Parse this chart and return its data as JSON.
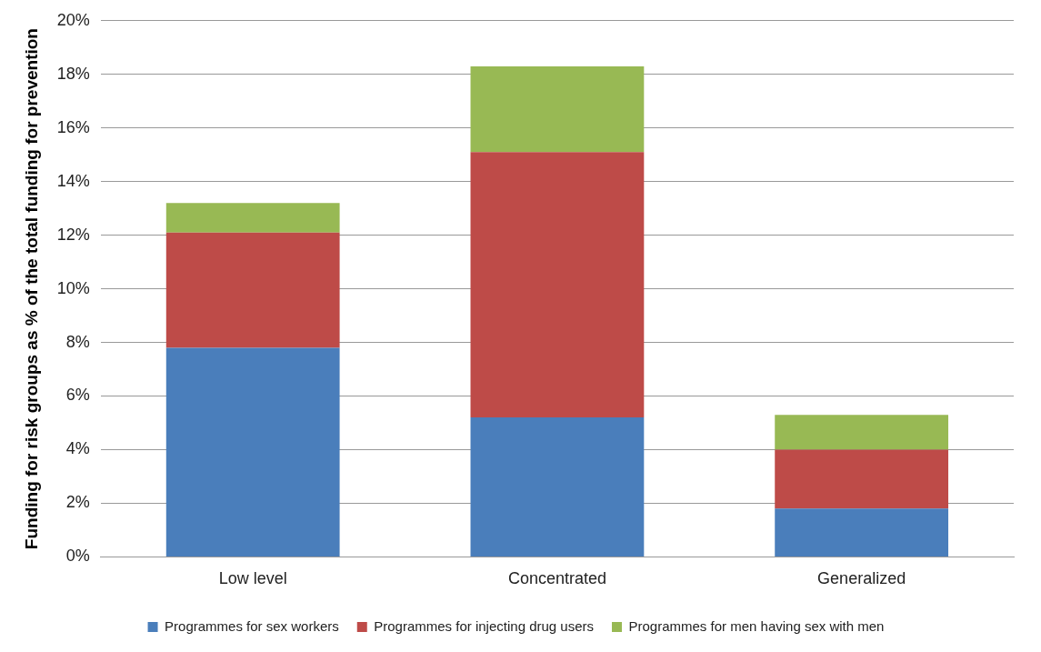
{
  "chart_data": {
    "type": "bar",
    "stacked": true,
    "ylabel": "Funding for risk groups as % of the total funding for prevention",
    "categories": [
      "Low level",
      "Concentrated",
      "Generalized"
    ],
    "series": [
      {
        "name": "Programmes for sex workers",
        "color": "#4a7ebb",
        "values": [
          7.8,
          5.2,
          1.8
        ]
      },
      {
        "name": "Programmes for injecting drug users",
        "color": "#be4b48",
        "values": [
          4.3,
          9.9,
          2.2
        ]
      },
      {
        "name": "Programmes for men having sex with men",
        "color": "#98b954",
        "values": [
          1.1,
          3.2,
          1.3
        ]
      }
    ],
    "ylim": [
      0,
      20
    ],
    "yticks": [
      {
        "value": 0,
        "label": "0%"
      },
      {
        "value": 2,
        "label": "2%"
      },
      {
        "value": 4,
        "label": "4%"
      },
      {
        "value": 6,
        "label": "6%"
      },
      {
        "value": 8,
        "label": "8%"
      },
      {
        "value": 10,
        "label": "10%"
      },
      {
        "value": 12,
        "label": "12%"
      },
      {
        "value": 14,
        "label": "14%"
      },
      {
        "value": 16,
        "label": "16%"
      },
      {
        "value": 18,
        "label": "18%"
      },
      {
        "value": 20,
        "label": "20%"
      }
    ],
    "grid": "y",
    "legend": "bottom"
  }
}
